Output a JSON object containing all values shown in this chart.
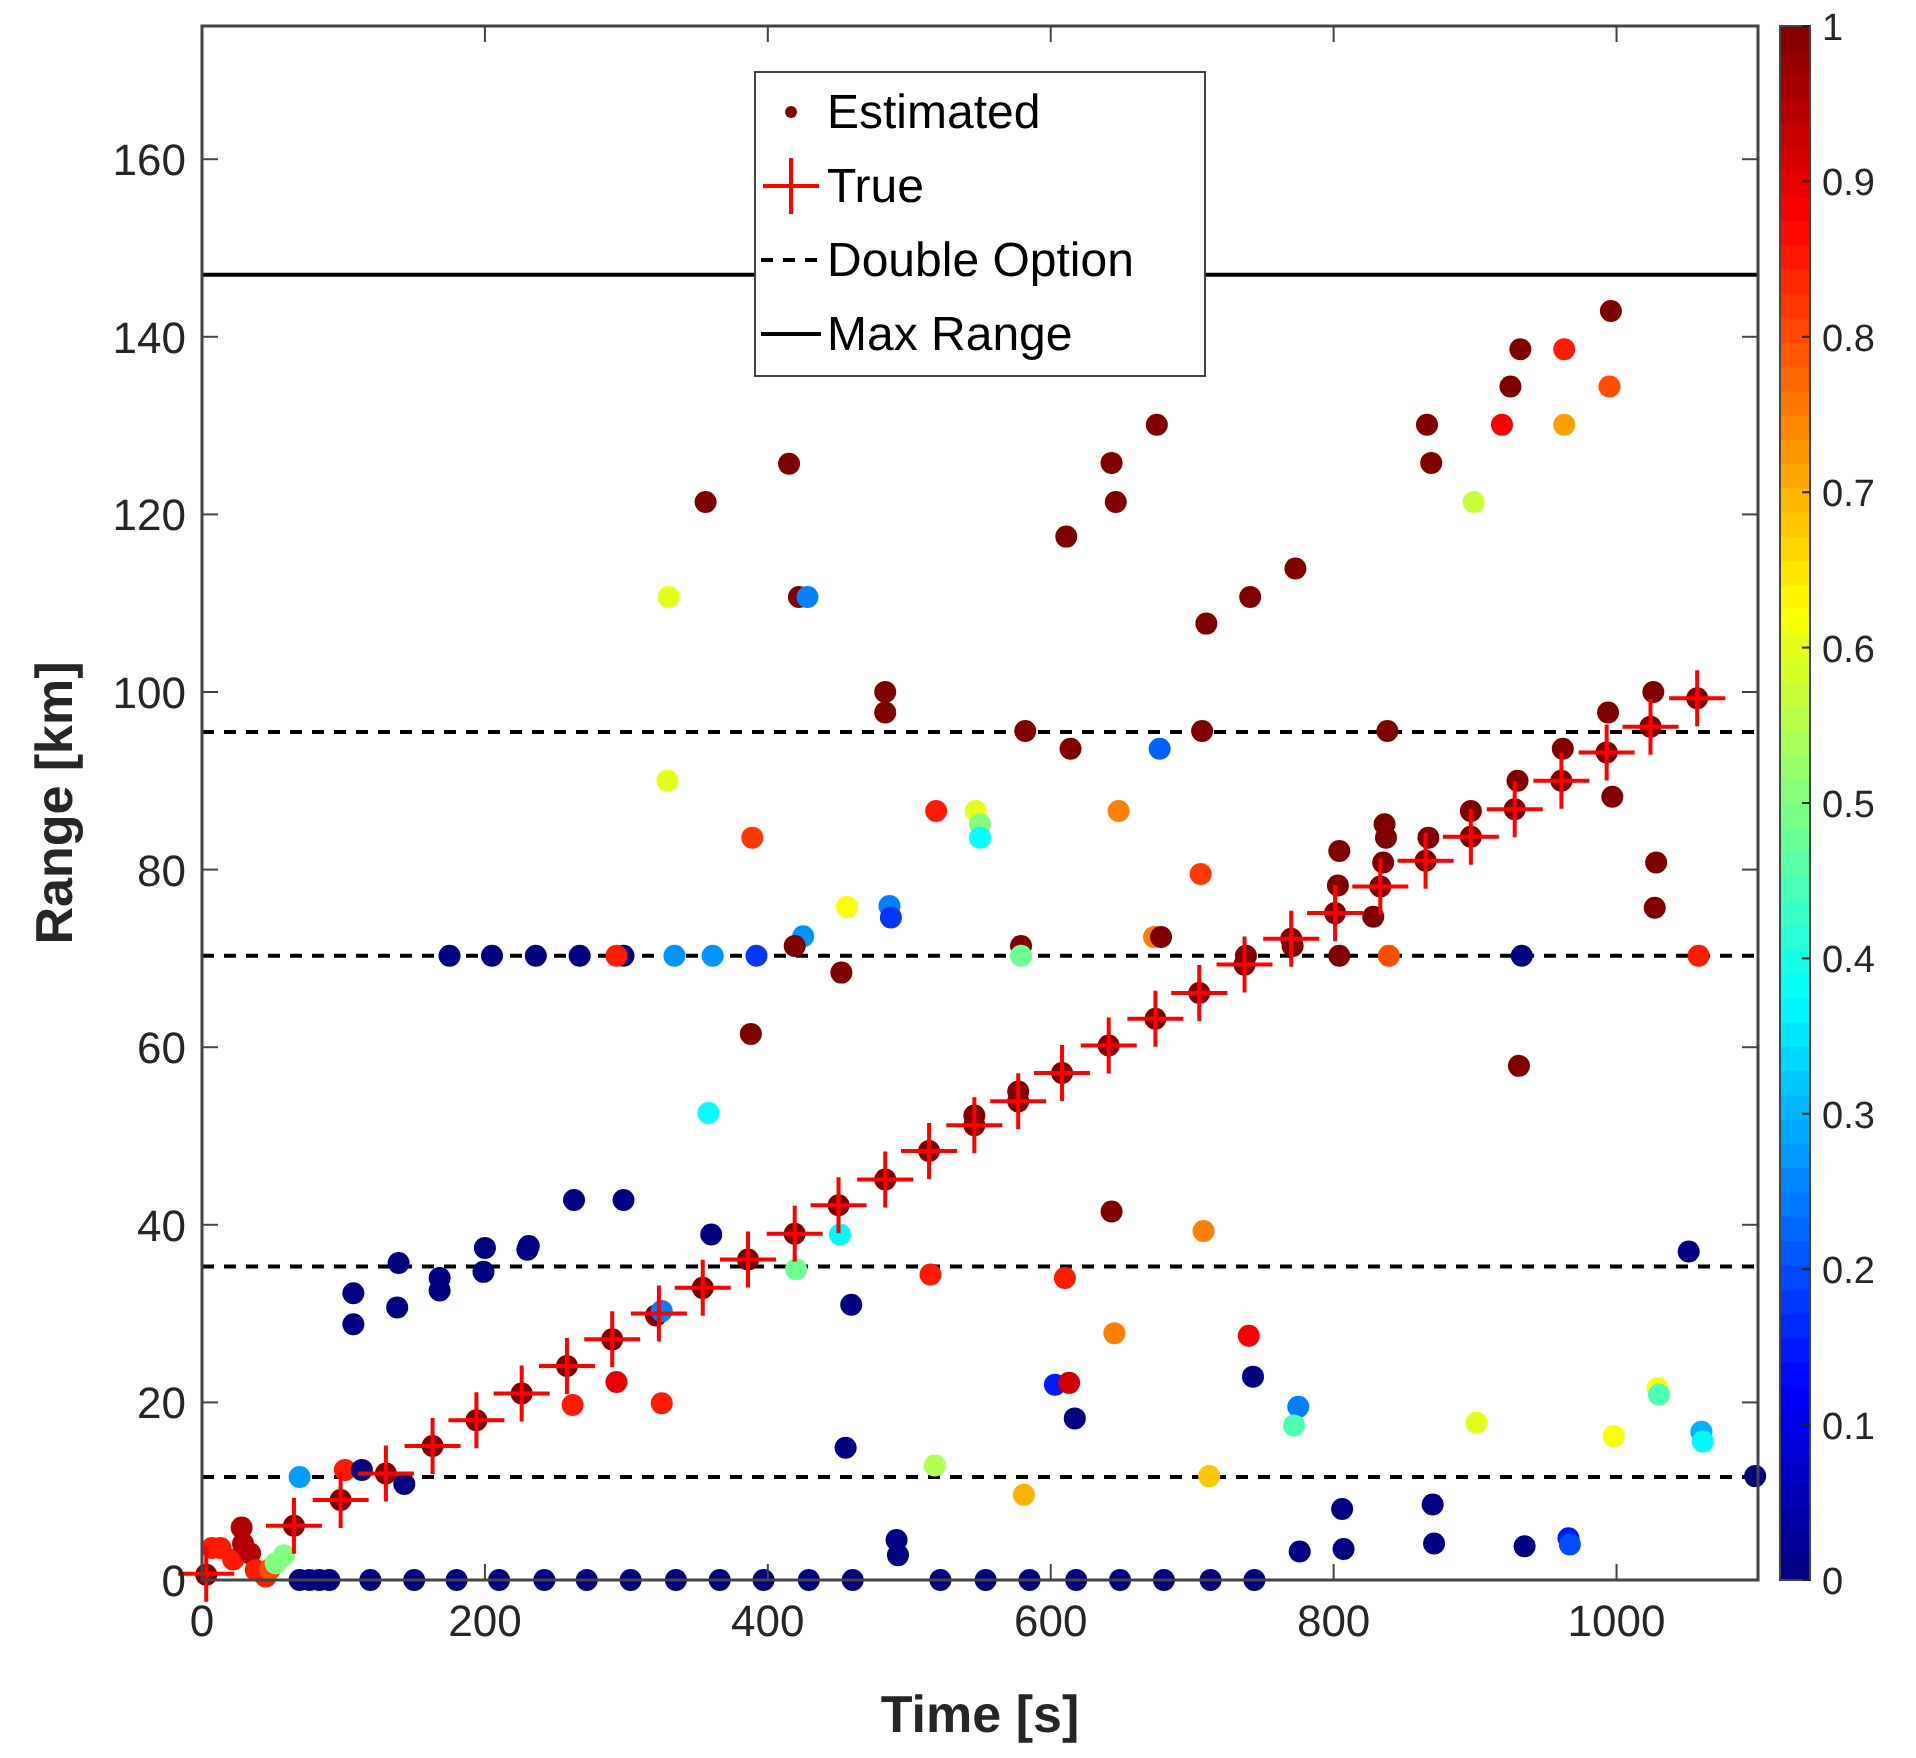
{
  "chart_data": {
    "type": "scatter",
    "xlabel": "Time [s]",
    "ylabel": "Range [km]",
    "xlim": [
      0,
      1100
    ],
    "ylim": [
      0,
      175
    ],
    "xticks": [
      0,
      200,
      400,
      600,
      800,
      1000
    ],
    "yticks": [
      0,
      20,
      40,
      60,
      80,
      100,
      120,
      140,
      160
    ],
    "clim": [
      0,
      1
    ],
    "cticks": [
      0,
      0.1,
      0.2,
      0.3,
      0.4,
      0.5,
      0.6,
      0.7,
      0.8,
      0.9,
      1
    ],
    "legend": "top",
    "series": [
      {
        "name": "Estimated",
        "marker": "circle",
        "x": [
          3,
          7,
          13,
          22,
          28,
          29,
          34,
          38,
          45,
          48,
          52,
          58,
          69,
          65,
          101,
          113,
          143,
          98,
          130,
          163,
          194,
          226,
          258,
          290,
          321,
          325,
          354,
          386,
          419,
          450,
          483,
          514,
          546,
          546,
          577,
          577,
          608,
          641,
          674,
          705,
          737,
          738,
          770,
          771,
          801,
          828,
          833,
          865,
          897,
          928,
          961,
          993,
          1024,
          1057,
          867,
          897,
          930,
          962,
          994,
          1026,
          997,
          1028,
          1027,
          931,
          804,
          803,
          836,
          837,
          835,
          804,
          839,
          933,
          1058,
          582,
          614,
          677,
          707,
          838,
          648,
          706,
          673,
          678,
          579,
          579,
          483,
          483,
          329,
          519,
          547,
          550,
          550,
          389,
          456,
          486,
          487,
          425,
          419,
          452,
          175,
          205,
          236,
          267,
          298,
          293,
          334,
          361,
          392,
          388,
          358,
          263,
          298,
          360,
          451,
          231,
          230,
          200,
          139,
          168,
          168,
          199,
          107,
          107,
          138,
          420,
          459,
          515,
          293,
          262,
          325,
          455,
          518,
          581,
          491,
          492,
          69,
          76,
          83,
          90,
          119,
          150,
          180,
          210,
          242,
          272,
          303,
          335,
          366,
          397,
          429,
          460,
          522,
          554,
          585,
          618,
          649,
          680,
          713,
          744,
          643,
          708,
          610,
          1051,
          645,
          740,
          603,
          613,
          617,
          743,
          775,
          772,
          901,
          998,
          1029,
          1030,
          1060,
          1061,
          1098,
          712,
          806,
          870,
          776,
          807,
          871,
          935,
          966,
          967,
          415,
          356,
          330,
          422,
          428,
          611,
          643,
          646,
          675,
          710,
          741,
          773,
          866,
          869,
          899,
          919,
          925,
          932,
          963,
          963,
          995,
          996
        ],
        "values": [
          0.6,
          3.6,
          3.6,
          2.3,
          5.9,
          4.1,
          3.0,
          1.1,
          0.4,
          1.2,
          1.9,
          2.8,
          11.6,
          6.1,
          12.4,
          12.4,
          10.8,
          9.0,
          12.0,
          15.1,
          18.0,
          21.0,
          24.1,
          27.1,
          29.8,
          30.3,
          32.9,
          36.1,
          39.0,
          42.2,
          45.1,
          48.3,
          51.2,
          52.3,
          53.9,
          55.0,
          57.1,
          60.2,
          63.2,
          66.1,
          69.3,
          70.3,
          72.2,
          71.4,
          75.1,
          74.7,
          78.1,
          81.0,
          83.7,
          86.8,
          90.0,
          93.2,
          96.1,
          99.3,
          83.6,
          86.6,
          90.0,
          93.6,
          97.7,
          100.0,
          88.2,
          80.8,
          75.7,
          57.9,
          82.1,
          78.2,
          85.1,
          83.6,
          80.8,
          70.3,
          70.3,
          70.3,
          70.3,
          95.6,
          93.6,
          93.6,
          95.6,
          95.6,
          86.6,
          79.5,
          72.4,
          72.4,
          71.4,
          70.3,
          100.0,
          97.7,
          90.0,
          86.6,
          86.6,
          85.1,
          83.6,
          83.6,
          75.8,
          75.9,
          74.6,
          72.5,
          71.4,
          68.4,
          70.3,
          70.3,
          70.3,
          70.3,
          70.3,
          70.3,
          70.3,
          70.3,
          70.3,
          61.5,
          52.6,
          42.8,
          42.8,
          38.9,
          38.9,
          37.6,
          37.2,
          37.4,
          35.7,
          34.0,
          32.6,
          34.7,
          32.3,
          28.8,
          30.7,
          35.0,
          31.0,
          34.4,
          22.3,
          19.7,
          19.9,
          14.9,
          12.9,
          9.6,
          4.5,
          2.8,
          0,
          0,
          0,
          0,
          0,
          0,
          0,
          0,
          0,
          0,
          0,
          0,
          0,
          0,
          0,
          0,
          0,
          0,
          0,
          0,
          0,
          0,
          0,
          0,
          41.5,
          39.3,
          34.0,
          37.0,
          27.8,
          27.5,
          22.0,
          22.2,
          18.2,
          22.9,
          19.5,
          17.4,
          17.7,
          16.2,
          21.6,
          20.9,
          16.7,
          15.6,
          11.7,
          11.7,
          8.0,
          8.5,
          3.2,
          3.5,
          4.1,
          3.8,
          4.7,
          4.0,
          125.7,
          121.4,
          110.7,
          110.7,
          110.7,
          117.5,
          125.8,
          121.4,
          130.1,
          107.7,
          110.7,
          113.9,
          130.1,
          125.8,
          121.4,
          130.1,
          134.4,
          138.6,
          138.6,
          130.1,
          134.4,
          142.9
        ],
        "colors": [
          "#800000",
          "#ff1a00",
          "#ff1a00",
          "#ff1a00",
          "#b30000",
          "#b30000",
          "#b30000",
          "#ff1a00",
          "#ff1a00",
          "#ff4d00",
          "#80ff80",
          "#80ff80",
          "#009eff",
          "#800000",
          "#ff1a00",
          "#000080",
          "#000080",
          "#800000",
          "#800000",
          "#800000",
          "#800000",
          "#800000",
          "#800000",
          "#800000",
          "#800000",
          "#0080ff",
          "#800000",
          "#800000",
          "#800000",
          "#800000",
          "#800000",
          "#800000",
          "#800000",
          "#800000",
          "#800000",
          "#800000",
          "#800000",
          "#800000",
          "#800000",
          "#800000",
          "#800000",
          "#800000",
          "#800000",
          "#800000",
          "#800000",
          "#800000",
          "#800000",
          "#800000",
          "#800000",
          "#800000",
          "#800000",
          "#800000",
          "#800000",
          "#800000",
          "#800000",
          "#800000",
          "#800000",
          "#800000",
          "#800000",
          "#800000",
          "#800000",
          "#800000",
          "#800000",
          "#800000",
          "#800000",
          "#800000",
          "#800000",
          "#800000",
          "#800000",
          "#800000",
          "#ff4d00",
          "#000080",
          "#ff1a00",
          "#800000",
          "#800000",
          "#0061ff",
          "#800000",
          "#800000",
          "#ff8000",
          "#ff3800",
          "#ff8000",
          "#800000",
          "#800000",
          "#6bff94",
          "#800000",
          "#800000",
          "#e6ff1a",
          "#ff1a00",
          "#e6ff1a",
          "#80ff80",
          "#05fffa",
          "#ff3800",
          "#faff05",
          "#0080ff",
          "#0038ff",
          "#0094ff",
          "#800000",
          "#800000",
          "#000080",
          "#000080",
          "#000080",
          "#000080",
          "#000080",
          "#ff1a00",
          "#0094ff",
          "#0094ff",
          "#0038ff",
          "#800000",
          "#05fffa",
          "#000080",
          "#000080",
          "#000080",
          "#00faff",
          "#000080",
          "#000080",
          "#000080",
          "#000080",
          "#000080",
          "#000080",
          "#000080",
          "#000080",
          "#000080",
          "#000080",
          "#6bff94",
          "#000080",
          "#ff1a00",
          "#e60000",
          "#ff1a00",
          "#ff1a00",
          "#000080",
          "#b3ff4d",
          "#ffb300",
          "#000080",
          "#000080",
          "#000080",
          "#000080",
          "#000080",
          "#000080",
          "#000080",
          "#000080",
          "#000080",
          "#000080",
          "#000080",
          "#000080",
          "#000080",
          "#000080",
          "#000080",
          "#000080",
          "#000080",
          "#000080",
          "#000080",
          "#000080",
          "#000080",
          "#000080",
          "#000080",
          "#000080",
          "#000080",
          "#000080",
          "#800000",
          "#ff8000",
          "#ff1a00",
          "#000080",
          "#ff8000",
          "#fa0000",
          "#001aff",
          "#d10000",
          "#000080",
          "#000080",
          "#0080ff",
          "#4dffb3",
          "#e6ff1a",
          "#faff05",
          "#faff05",
          "#4dffb3",
          "#00b3ff",
          "#00faff",
          "#000080",
          "#ffc700",
          "#000080",
          "#000080",
          "#000080",
          "#000080",
          "#000080",
          "#000080",
          "#001aff",
          "#004dff",
          "#800000",
          "#800000",
          "#e6ff1a",
          "#800000",
          "#0080ff",
          "#800000",
          "#800000",
          "#800000",
          "#800000",
          "#800000",
          "#800000",
          "#800000",
          "#800000",
          "#800000",
          "#c7ff38",
          "#fa0000",
          "#800000",
          "#800000",
          "#ff1a00",
          "#ff9e00",
          "#ff4d00",
          "#800000"
        ]
      },
      {
        "name": "True",
        "marker": "cross",
        "color": "#ff0000",
        "x": [
          3,
          65,
          98,
          130,
          163,
          194,
          226,
          258,
          290,
          323,
          354,
          386,
          419,
          450,
          483,
          514,
          546,
          577,
          608,
          641,
          674,
          705,
          737,
          770,
          801,
          833,
          865,
          897,
          928,
          961,
          993,
          1024,
          1057
        ],
        "values": [
          0.7,
          6.1,
          9.0,
          12.0,
          15.1,
          18.0,
          21.0,
          24.1,
          27.1,
          30.0,
          32.9,
          36.1,
          39.0,
          42.2,
          45.1,
          48.3,
          51.2,
          53.9,
          57.1,
          60.2,
          63.2,
          66.1,
          69.3,
          72.2,
          75.1,
          78.1,
          81.0,
          83.7,
          86.8,
          90.0,
          93.2,
          96.1,
          99.3
        ]
      }
    ],
    "ref_lines": [
      {
        "axis": "y",
        "value": 95.5,
        "label": "Double Option",
        "line_style": "dashed",
        "color": "#000000"
      },
      {
        "axis": "y",
        "value": 70.3,
        "line_style": "dashed",
        "color": "#000000"
      },
      {
        "axis": "y",
        "value": 35.3,
        "line_style": "dashed",
        "color": "#000000"
      },
      {
        "axis": "y",
        "value": 11.6,
        "line_style": "dashed",
        "color": "#000000"
      },
      {
        "axis": "y",
        "value": 147,
        "label": "Max Range",
        "line_style": "solid",
        "color": "#000000"
      }
    ]
  }
}
